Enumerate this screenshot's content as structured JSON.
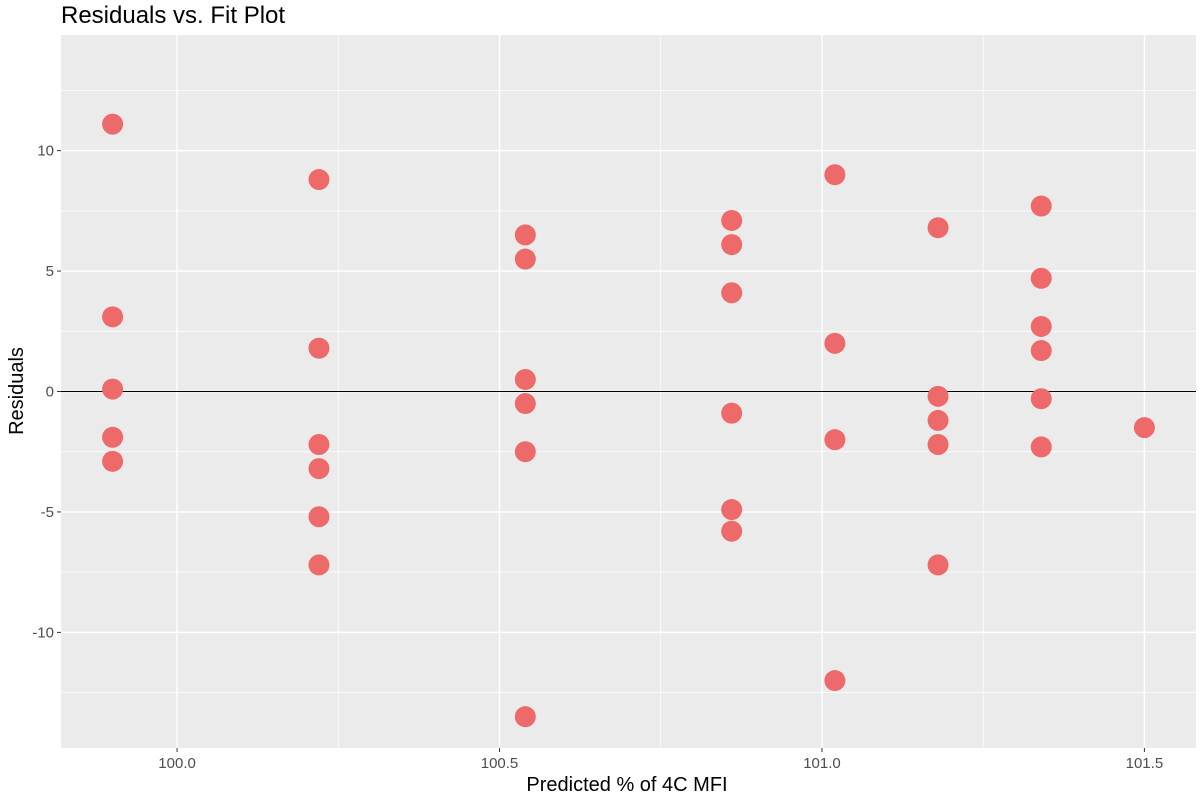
{
  "chart_data": {
    "type": "scatter",
    "title": "Residuals vs. Fit Plot",
    "xlabel": "Predicted % of 4C MFI",
    "ylabel": "Residuals",
    "xlim": [
      99.82,
      101.58
    ],
    "ylim": [
      -14.8,
      14.8
    ],
    "x_ticks": [
      100.0,
      100.5,
      101.0,
      101.5
    ],
    "x_tick_labels": [
      "100.0",
      "100.5",
      "101.0",
      "101.5"
    ],
    "y_ticks": [
      -10,
      -5,
      0,
      5,
      10
    ],
    "y_tick_labels": [
      "-10",
      "-5",
      "0",
      "5",
      "10"
    ],
    "reference_line": {
      "y": 0
    },
    "grid": true,
    "legend": "none",
    "colors": {
      "panel_background": "#ebebeb",
      "grid_line": "#ffffff",
      "point": "#ee6a6a",
      "reference_line": "#000000"
    },
    "series": [
      {
        "points": [
          {
            "x": 99.9,
            "y": 11.1
          },
          {
            "x": 99.9,
            "y": 3.1
          },
          {
            "x": 99.9,
            "y": 0.1
          },
          {
            "x": 99.9,
            "y": -1.9
          },
          {
            "x": 99.9,
            "y": -2.9
          },
          {
            "x": 100.22,
            "y": 8.8
          },
          {
            "x": 100.22,
            "y": 1.8
          },
          {
            "x": 100.22,
            "y": -2.2
          },
          {
            "x": 100.22,
            "y": -3.2
          },
          {
            "x": 100.22,
            "y": -5.2
          },
          {
            "x": 100.22,
            "y": -7.2
          },
          {
            "x": 100.54,
            "y": 6.5
          },
          {
            "x": 100.54,
            "y": 5.5
          },
          {
            "x": 100.54,
            "y": 0.5
          },
          {
            "x": 100.54,
            "y": -0.5
          },
          {
            "x": 100.54,
            "y": -2.5
          },
          {
            "x": 100.54,
            "y": -13.5
          },
          {
            "x": 100.86,
            "y": 7.1
          },
          {
            "x": 100.86,
            "y": 6.1
          },
          {
            "x": 100.86,
            "y": 4.1
          },
          {
            "x": 100.86,
            "y": -0.9
          },
          {
            "x": 100.86,
            "y": -4.9
          },
          {
            "x": 100.86,
            "y": -5.8
          },
          {
            "x": 101.02,
            "y": 9.0
          },
          {
            "x": 101.02,
            "y": 2.0
          },
          {
            "x": 101.02,
            "y": -2.0
          },
          {
            "x": 101.02,
            "y": -12.0
          },
          {
            "x": 101.18,
            "y": 6.8
          },
          {
            "x": 101.18,
            "y": -0.2
          },
          {
            "x": 101.18,
            "y": -1.2
          },
          {
            "x": 101.18,
            "y": -2.2
          },
          {
            "x": 101.18,
            "y": -7.2
          },
          {
            "x": 101.34,
            "y": 7.7
          },
          {
            "x": 101.34,
            "y": 4.7
          },
          {
            "x": 101.34,
            "y": 2.7
          },
          {
            "x": 101.34,
            "y": 1.7
          },
          {
            "x": 101.34,
            "y": -0.3
          },
          {
            "x": 101.34,
            "y": -2.3
          },
          {
            "x": 101.5,
            "y": -1.5
          }
        ]
      }
    ]
  }
}
